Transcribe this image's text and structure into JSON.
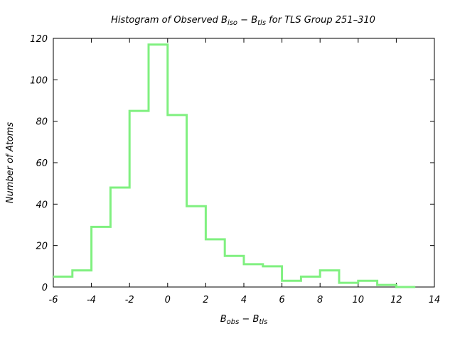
{
  "chart_data": {
    "type": "bar",
    "style": "step-histogram",
    "title": {
      "prefix": "Histogram of Observed B",
      "sub1": "iso",
      "mid": " − B",
      "sub2": "tls",
      "suffix": " for TLS Group 251–310"
    },
    "xlabel": {
      "main1": "B",
      "sub1": "obs",
      "mid": " − B",
      "sub2": "tls"
    },
    "ylabel": "Number of Atoms",
    "xlim": [
      -6,
      14
    ],
    "ylim": [
      0,
      120
    ],
    "xticks": [
      -6,
      -4,
      -2,
      0,
      2,
      4,
      6,
      8,
      10,
      12,
      14
    ],
    "yticks": [
      0,
      20,
      40,
      60,
      80,
      100,
      120
    ],
    "x_tick_labels": [
      "-6",
      "-4",
      "-2",
      "0",
      "2",
      "4",
      "6",
      "8",
      "10",
      "12",
      "14"
    ],
    "y_tick_labels": [
      "0",
      "20",
      "40",
      "60",
      "80",
      "100",
      "120"
    ],
    "grid": false,
    "line_color": "#80f080",
    "bins": [
      {
        "x0": -6,
        "x1": -5,
        "count": 5
      },
      {
        "x0": -5,
        "x1": -4,
        "count": 8
      },
      {
        "x0": -4,
        "x1": -3,
        "count": 29
      },
      {
        "x0": -3,
        "x1": -2,
        "count": 48
      },
      {
        "x0": -2,
        "x1": -1,
        "count": 85
      },
      {
        "x0": -1,
        "x1": 0,
        "count": 117
      },
      {
        "x0": 0,
        "x1": 1,
        "count": 83
      },
      {
        "x0": 1,
        "x1": 2,
        "count": 39
      },
      {
        "x0": 2,
        "x1": 3,
        "count": 23
      },
      {
        "x0": 3,
        "x1": 4,
        "count": 15
      },
      {
        "x0": 4,
        "x1": 5,
        "count": 11
      },
      {
        "x0": 5,
        "x1": 6,
        "count": 10
      },
      {
        "x0": 6,
        "x1": 7,
        "count": 3
      },
      {
        "x0": 7,
        "x1": 8,
        "count": 5
      },
      {
        "x0": 8,
        "x1": 9,
        "count": 8
      },
      {
        "x0": 9,
        "x1": 10,
        "count": 2
      },
      {
        "x0": 10,
        "x1": 11,
        "count": 3
      },
      {
        "x0": 11,
        "x1": 12,
        "count": 1
      },
      {
        "x0": 12,
        "x1": 13,
        "count": 0
      }
    ]
  }
}
